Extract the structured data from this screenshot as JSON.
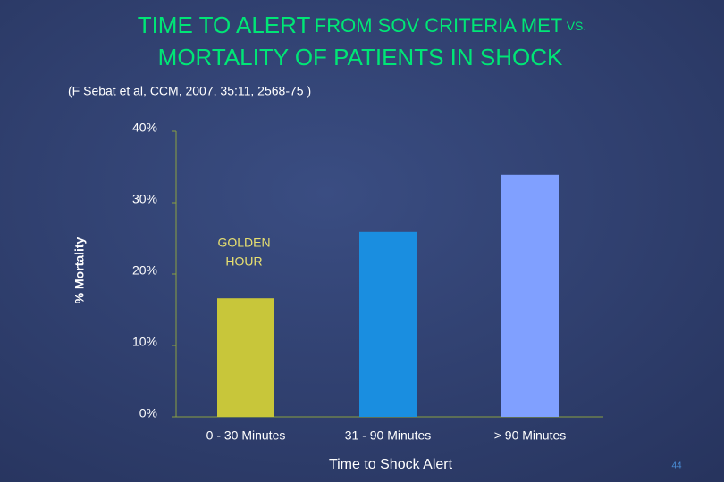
{
  "chart_data": {
    "type": "bar",
    "title": [
      "TIME TO ALERT",
      "FROM SOV CRITERIA MET",
      "VS.",
      "MORTALITY OF PATIENTS IN SHOCK"
    ],
    "subtitle": "(F Sebat et al, CCM, 2007, 35:11, 2568-75 )",
    "x_label": "Time to Shock Alert",
    "y_label": "% Mortality",
    "categories": [
      "0 - 30 Minutes",
      "31 - 90 Minutes",
      "> 90 Minutes"
    ],
    "values": [
      16.6,
      25.9,
      33.9
    ],
    "colors": [
      "#c8c63a",
      "#1a8ee0",
      "#80a0ff"
    ],
    "ylim": [
      0,
      40
    ],
    "yticks": [
      {
        "value": 0,
        "label": "0%"
      },
      {
        "value": 10,
        "label": "10%"
      },
      {
        "value": 20,
        "label": "20%"
      },
      {
        "value": 30,
        "label": "30%"
      },
      {
        "value": 40,
        "label": "40%"
      }
    ],
    "annotation": [
      "GOLDEN",
      "HOUR"
    ],
    "page_number": "44"
  }
}
